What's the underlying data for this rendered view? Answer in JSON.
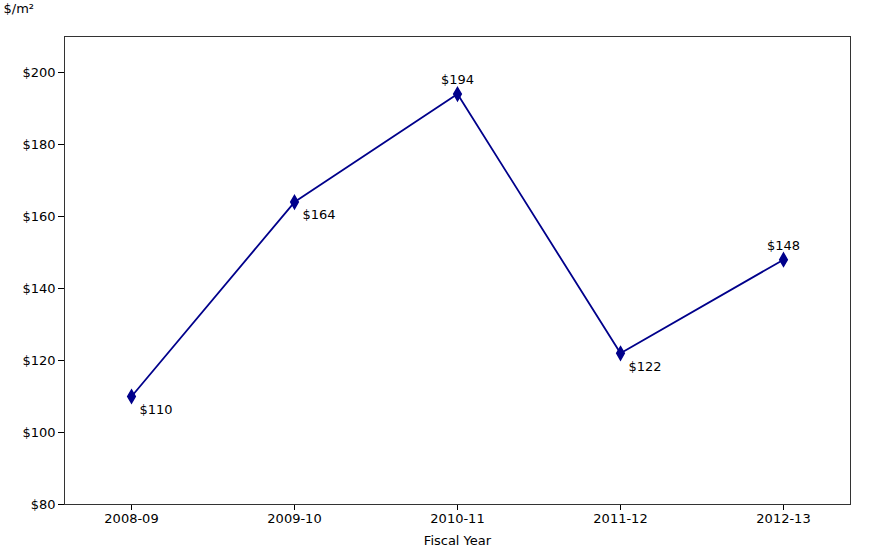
{
  "chart_data": {
    "type": "line",
    "xlabel": "Fiscal Year",
    "ylabel": "$/m²",
    "categories": [
      "2008-09",
      "2009-10",
      "2010-11",
      "2011-12",
      "2012-13"
    ],
    "values": [
      110,
      164,
      194,
      122,
      148
    ],
    "value_labels": [
      "$110",
      "$164",
      "$194",
      "$122",
      "$148"
    ],
    "data_labels": true,
    "color": "#00008B",
    "marker": "diamond",
    "ylim": [
      80,
      210
    ],
    "yticks": [
      {
        "value": 80,
        "label": "$80"
      },
      {
        "value": 100,
        "label": "$100"
      },
      {
        "value": 120,
        "label": "$120"
      },
      {
        "value": 140,
        "label": "$140"
      },
      {
        "value": 160,
        "label": "$160"
      },
      {
        "value": 180,
        "label": "$180"
      },
      {
        "value": 200,
        "label": "$200"
      }
    ],
    "grid": false
  }
}
